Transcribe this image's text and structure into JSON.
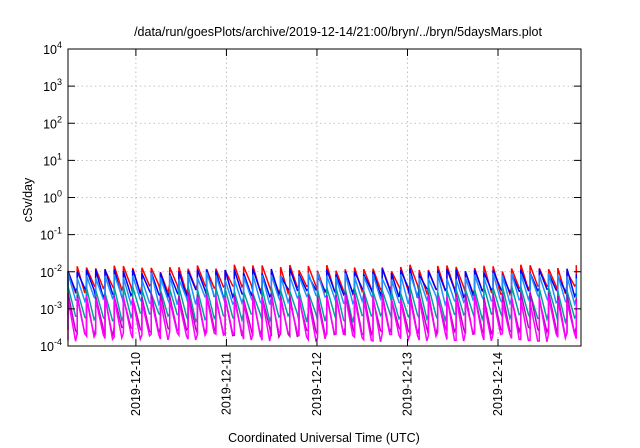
{
  "chart_data": {
    "type": "line",
    "title": "/data/run/goesPlots/archive/2019-12-14/21:00/bryn/../bryn/5daysMars.plot",
    "xlabel": "Coordinated Universal Time (UTC)",
    "ylabel": "cSv/day",
    "yscale": "log",
    "ylim": [
      0.0001,
      10000
    ],
    "xlim": [
      "2019-12-09T06:00",
      "2019-12-14T22:00"
    ],
    "grid": true,
    "x_ticks": [
      "2019-12-10",
      "2019-12-11",
      "2019-12-12",
      "2019-12-13",
      "2019-12-14"
    ],
    "y_ticks": [
      {
        "value": 0.0001,
        "base": "10",
        "exp": "-4"
      },
      {
        "value": 0.001,
        "base": "10",
        "exp": "-3"
      },
      {
        "value": 0.01,
        "base": "10",
        "exp": "-2"
      },
      {
        "value": 0.1,
        "base": "10",
        "exp": "-1"
      },
      {
        "value": 1,
        "base": "10",
        "exp": "0"
      },
      {
        "value": 10,
        "base": "10",
        "exp": "1"
      },
      {
        "value": 100,
        "base": "10",
        "exp": "2"
      },
      {
        "value": 1000,
        "base": "10",
        "exp": "3"
      },
      {
        "value": 10000,
        "base": "10",
        "exp": "4"
      }
    ],
    "sawtooth_cycle_hours": 2.45,
    "series": [
      {
        "color": "#ff0000",
        "peak": 0.012,
        "trough": 0.0035
      },
      {
        "color": "#0000ff",
        "peak": 0.0095,
        "trough": 0.0028
      },
      {
        "color": "#1e90ff",
        "peak": 0.0075,
        "trough": 0.0018
      },
      {
        "color": "#00a0a0",
        "peak": 0.0032,
        "trough": 0.0006
      },
      {
        "color": "#c000c0",
        "peak": 0.0022,
        "trough": 0.00025
      },
      {
        "color": "#ff00ff",
        "peak": 0.0018,
        "trough": 0.00018
      }
    ]
  }
}
